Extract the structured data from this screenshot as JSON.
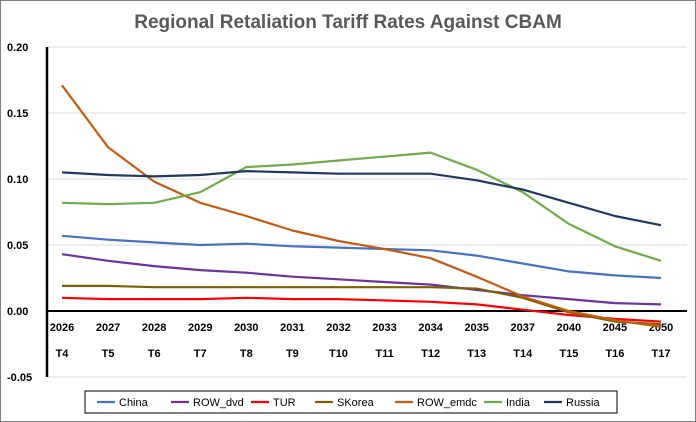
{
  "chart_data": {
    "type": "line",
    "title": "Regional Retaliation Tariff Rates Against CBAM",
    "xlabel": "",
    "ylabel": "",
    "categories": [
      "2026",
      "2027",
      "2028",
      "2029",
      "2030",
      "2031",
      "2032",
      "2033",
      "2034",
      "2035",
      "2037",
      "2040",
      "2045",
      "2050"
    ],
    "categories_secondary": [
      "T4",
      "T5",
      "T6",
      "T7",
      "T8",
      "T9",
      "T10",
      "T11",
      "T12",
      "T13",
      "T14",
      "T15",
      "T16",
      "T17"
    ],
    "ylim": [
      -0.05,
      0.2
    ],
    "yticks": [
      "0.20",
      "0.15",
      "0.10",
      "0.05",
      "0.00",
      "-0.05"
    ],
    "ytick_values": [
      0.2,
      0.15,
      0.1,
      0.05,
      0.0,
      -0.05
    ],
    "grid": true,
    "legend_position": "bottom",
    "series": [
      {
        "name": "China",
        "color": "#4472c4",
        "values": [
          0.057,
          0.054,
          0.052,
          0.05,
          0.051,
          0.049,
          0.048,
          0.047,
          0.046,
          0.042,
          0.036,
          0.03,
          0.027,
          0.025
        ]
      },
      {
        "name": "ROW_dvd",
        "color": "#7030a0",
        "values": [
          0.043,
          0.038,
          0.034,
          0.031,
          0.029,
          0.026,
          0.024,
          0.022,
          0.02,
          0.016,
          0.012,
          0.009,
          0.006,
          0.005
        ]
      },
      {
        "name": "TUR",
        "color": "#ff0000",
        "values": [
          0.01,
          0.009,
          0.009,
          0.009,
          0.01,
          0.009,
          0.009,
          0.008,
          0.007,
          0.005,
          0.001,
          -0.003,
          -0.006,
          -0.008
        ]
      },
      {
        "name": "SKorea",
        "color": "#7f6000",
        "values": [
          0.019,
          0.019,
          0.018,
          0.018,
          0.018,
          0.018,
          0.018,
          0.018,
          0.018,
          0.017,
          0.01,
          -0.001,
          -0.008,
          -0.01
        ]
      },
      {
        "name": "ROW_emdc",
        "color": "#c55a11",
        "values": [
          0.171,
          0.124,
          0.098,
          0.082,
          0.072,
          0.061,
          0.053,
          0.047,
          0.04,
          0.026,
          0.011,
          0.0,
          -0.007,
          -0.012
        ]
      },
      {
        "name": "India",
        "color": "#70ad47",
        "values": [
          0.082,
          0.081,
          0.082,
          0.09,
          0.109,
          0.111,
          0.114,
          0.117,
          0.12,
          0.107,
          0.09,
          0.066,
          0.049,
          0.038
        ]
      },
      {
        "name": "Russia",
        "color": "#1f3864",
        "values": [
          0.105,
          0.103,
          0.102,
          0.103,
          0.106,
          0.105,
          0.104,
          0.104,
          0.104,
          0.099,
          0.092,
          0.082,
          0.072,
          0.065
        ]
      }
    ]
  }
}
